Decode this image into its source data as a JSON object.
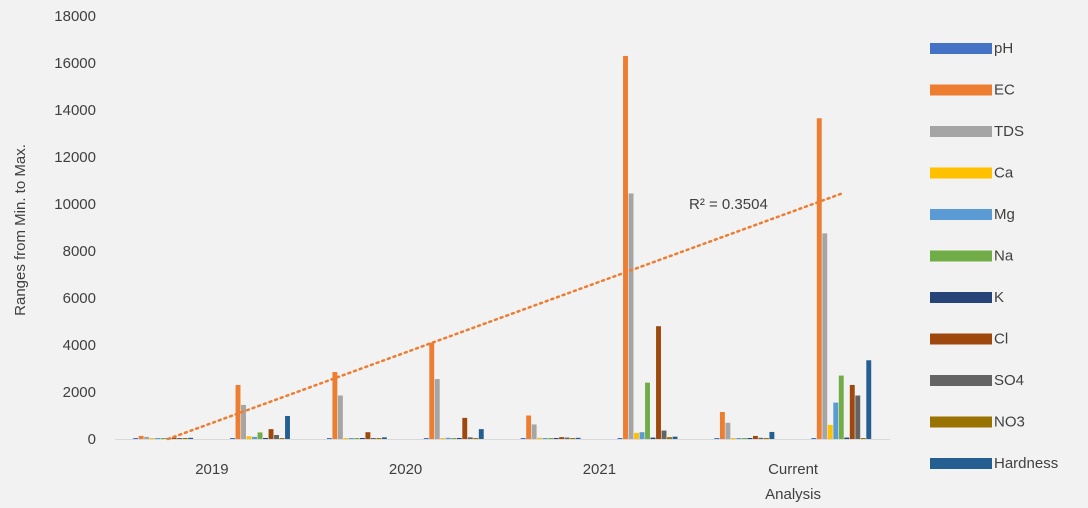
{
  "chart_data": {
    "type": "bar",
    "ylabel": "Ranges from Min. to Max.",
    "ylim": [
      0,
      18000
    ],
    "yticks": [
      0,
      2000,
      4000,
      6000,
      8000,
      10000,
      12000,
      14000,
      16000,
      18000
    ],
    "groups": [
      "2019",
      "",
      "2020",
      "",
      "2021",
      "",
      "Current Analysis",
      ""
    ],
    "category_labels": [
      "2019",
      "2020",
      "2021",
      "Current Analysis"
    ],
    "series": [
      {
        "name": "pH",
        "color": "#4472c4",
        "values": [
          7,
          8,
          7,
          8,
          7,
          8,
          7,
          8
        ]
      },
      {
        "name": "EC",
        "color": "#ed7d31",
        "values": [
          130,
          2300,
          2850,
          4100,
          1000,
          16300,
          1150,
          13650
        ]
      },
      {
        "name": "TDS",
        "color": "#a5a5a5",
        "values": [
          90,
          1450,
          1850,
          2550,
          620,
          10450,
          690,
          8750
        ]
      },
      {
        "name": "Ca",
        "color": "#ffc000",
        "values": [
          30,
          120,
          30,
          40,
          50,
          260,
          40,
          600
        ]
      },
      {
        "name": "Mg",
        "color": "#5b9bd5",
        "values": [
          20,
          90,
          20,
          50,
          30,
          290,
          30,
          1550
        ]
      },
      {
        "name": "Na",
        "color": "#70ad47",
        "values": [
          40,
          280,
          30,
          40,
          40,
          2400,
          40,
          2700
        ]
      },
      {
        "name": "K",
        "color": "#264478",
        "values": [
          5,
          25,
          4,
          8,
          5,
          60,
          5,
          60
        ]
      },
      {
        "name": "Cl",
        "color": "#9e480e",
        "values": [
          60,
          420,
          290,
          900,
          80,
          4800,
          130,
          2300
        ]
      },
      {
        "name": "SO4",
        "color": "#636363",
        "values": [
          40,
          170,
          30,
          70,
          60,
          360,
          50,
          1850
        ]
      },
      {
        "name": "NO3",
        "color": "#997300",
        "values": [
          5,
          40,
          5,
          20,
          5,
          80,
          5,
          40
        ]
      },
      {
        "name": "Hardness",
        "color": "#255e91",
        "values": [
          50,
          980,
          70,
          420,
          50,
          100,
          300,
          3350
        ]
      }
    ],
    "trendline": {
      "type": "linear",
      "series": "EC",
      "color": "#ed7d31",
      "label": "R² = 0.3504"
    },
    "legend": "right",
    "grid": false
  }
}
